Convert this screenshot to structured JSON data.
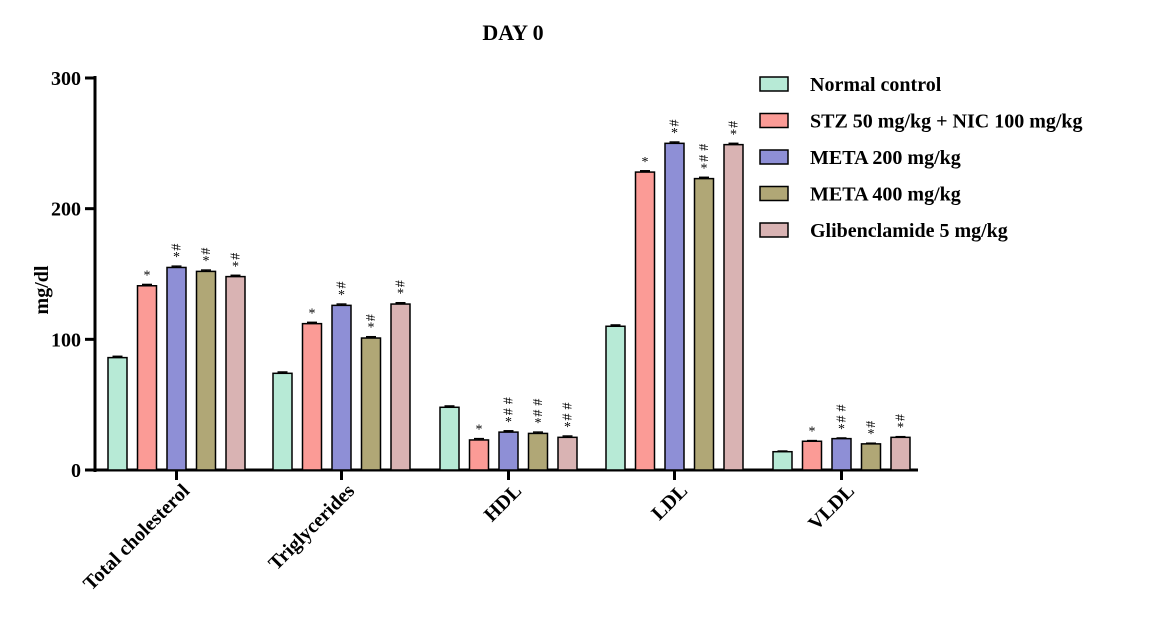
{
  "chart_data": {
    "type": "bar",
    "title": "DAY 0",
    "xlabel": "",
    "ylabel": "mg/dl",
    "ylim": [
      0,
      300
    ],
    "yticks": [
      "0",
      "100",
      "200",
      "300"
    ],
    "categories": [
      "Total cholesterol",
      "Triglycerides",
      "HDL",
      "LDL",
      "VLDL"
    ],
    "legend_position": "top-right",
    "error_bars": true,
    "series": [
      {
        "name": "Normal control",
        "color": "#b7ead6",
        "values": [
          86,
          74,
          48,
          110,
          14
        ],
        "errors": [
          1,
          1,
          1,
          1,
          0.5
        ],
        "annotations": [
          "",
          "",
          "",
          "",
          ""
        ]
      },
      {
        "name": "STZ 50 mg/kg + NIC 100 mg/kg",
        "color": "#fb9b96",
        "values": [
          141,
          112,
          23,
          228,
          22
        ],
        "errors": [
          1,
          1,
          1,
          1,
          0.5
        ],
        "annotations": [
          "*",
          "*",
          "*",
          "*",
          "*"
        ]
      },
      {
        "name": "META 200 mg/kg",
        "color": "#8e8fd6",
        "values": [
          155,
          126,
          29,
          250,
          24
        ],
        "errors": [
          1,
          1,
          1,
          1,
          0.5
        ],
        "annotations": [
          "*#",
          "*#",
          "*##",
          "*#",
          "*##"
        ]
      },
      {
        "name": "META 400 mg/kg",
        "color": "#b0a776",
        "values": [
          152,
          101,
          28,
          223,
          20
        ],
        "errors": [
          1,
          1,
          1,
          1,
          0.5
        ],
        "annotations": [
          "*#",
          "*#",
          "*##",
          "*##",
          "*#"
        ]
      },
      {
        "name": "Glibenclamide 5 mg/kg",
        "color": "#d9b3b3",
        "values": [
          148,
          127,
          25,
          249,
          25
        ],
        "errors": [
          1,
          1,
          1,
          1,
          0.5
        ],
        "annotations": [
          "*#",
          "*#",
          "*##",
          "*#",
          "*#"
        ]
      }
    ]
  }
}
